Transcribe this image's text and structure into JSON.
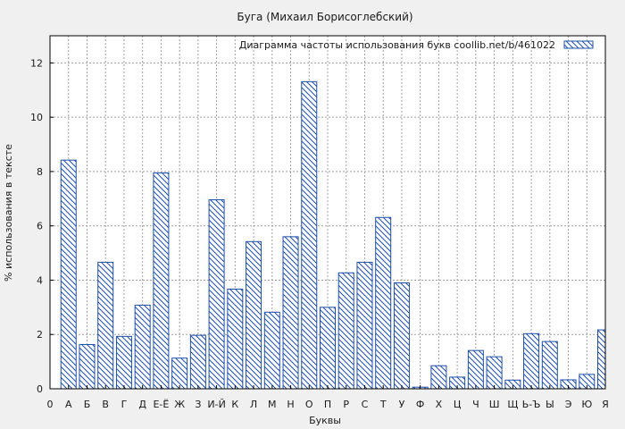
{
  "chart_data": {
    "type": "bar",
    "title": "Буга (Михаил Борисоглебский)",
    "xlabel": "Буквы",
    "ylabel": "% использования в тексте",
    "legend": {
      "label": "Диаграмма частоты использования букв  coollib.net/b/461022",
      "placement": "top-right"
    },
    "ylim": [
      0,
      13
    ],
    "yticks": [
      0,
      2,
      4,
      6,
      8,
      10,
      12
    ],
    "grid": true,
    "bar_color": "#1f4fa8",
    "categories": [
      "0",
      "А",
      "Б",
      "В",
      "Г",
      "Д",
      "Е-Ё",
      "Ж",
      "З",
      "И-Й",
      "К",
      "Л",
      "М",
      "Н",
      "О",
      "П",
      "Р",
      "С",
      "Т",
      "У",
      "Ф",
      "Х",
      "Ц",
      "Ч",
      "Ш",
      "Щ",
      "Ь-Ъ",
      "Ы",
      "Э",
      "Ю",
      "Я"
    ],
    "values": [
      0,
      8.42,
      1.63,
      4.66,
      1.93,
      3.08,
      7.95,
      1.13,
      1.97,
      6.96,
      3.67,
      5.42,
      2.82,
      5.6,
      11.31,
      3.0,
      4.27,
      4.66,
      6.31,
      3.9,
      0.06,
      0.85,
      0.43,
      1.41,
      1.18,
      0.32,
      2.03,
      1.74,
      0.33,
      0.53,
      2.17
    ]
  }
}
